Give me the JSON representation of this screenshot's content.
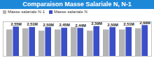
{
  "chart_data": {
    "type": "bar",
    "title": "Comparaison Masse Salariale N, N-1",
    "categories": [
      null,
      null,
      null,
      null,
      null,
      null,
      null,
      null,
      null
    ],
    "series": [
      {
        "name": "Masse salariale N-1",
        "color": "#b4b4b4",
        "values": [
          2.3,
          2.4,
          2.2,
          2.3,
          2.5,
          2.2,
          2.3,
          2.3,
          2.4
        ]
      },
      {
        "name": "Masse salariale N",
        "color": "#3b4fc8",
        "values": [
          2.55,
          2.51,
          2.5,
          2.45,
          2.44,
          2.59,
          2.5,
          2.51,
          2.68
        ],
        "value_labels": [
          "2,55M",
          "2,51M",
          "2,50M",
          "2,45M",
          "2,44M",
          "2,59M",
          "2,50M",
          "2,51M",
          "2,68M"
        ]
      }
    ],
    "ylim": [
      0,
      3
    ],
    "yticks": [],
    "tick_labels": false,
    "data_labels": true,
    "legend": "top-left"
  }
}
